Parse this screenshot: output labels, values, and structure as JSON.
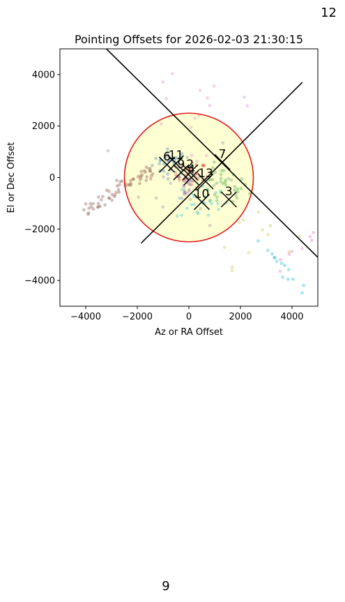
{
  "page": {
    "corner_number": "12",
    "footer_number": "9"
  },
  "colors": {
    "circle": "#e31a1c",
    "circle_fill": "#ffffd4",
    "lines": "#000000",
    "palette": [
      "#1f77b4",
      "#ff7f0e",
      "#2ca02c",
      "#d62728",
      "#9467bd",
      "#8c564b",
      "#e377c2",
      "#7f7f7f",
      "#bcbd22",
      "#17becf"
    ]
  },
  "chart_data": {
    "type": "scatter",
    "title": "Pointing Offsets for 2026-02-03 21:30:15",
    "xlabel": "Az or RA Offset",
    "ylabel": "El or Dec Offset",
    "xlim": [
      -5000,
      5000
    ],
    "ylim": [
      -5000,
      5000
    ],
    "x_ticks": [
      -4000,
      -2000,
      0,
      2000,
      4000
    ],
    "y_ticks": [
      -4000,
      -2000,
      0,
      2000,
      4000
    ],
    "x_tick_labels": [
      "−4000",
      "−2000",
      "0",
      "2000",
      "4000"
    ],
    "y_tick_labels": [
      "−4000",
      "−2000",
      "0",
      "2000",
      "4000"
    ],
    "grid": false,
    "circle": {
      "center": [
        0,
        0
      ],
      "radius": 2500
    },
    "lines": [
      {
        "name": "diagonal-down",
        "x": [
          -3200,
          5000
        ],
        "y": [
          5000,
          -3100
        ]
      },
      {
        "name": "diagonal-up",
        "x": [
          -1850,
          4400
        ],
        "y": [
          -2550,
          3700
        ]
      }
    ],
    "marked_points": [
      {
        "label": "6",
        "x": -850,
        "y": 500
      },
      {
        "label": "11",
        "x": -500,
        "y": 550
      },
      {
        "label": "7",
        "x": 1300,
        "y": 600
      },
      {
        "label": "9",
        "x": -300,
        "y": 200
      },
      {
        "label": "2",
        "x": 50,
        "y": 200
      },
      {
        "label": "4",
        "x": 100,
        "y": 0
      },
      {
        "label": "13",
        "x": 650,
        "y": -150
      },
      {
        "label": "10",
        "x": 500,
        "y": -950
      },
      {
        "label": "3",
        "x": 1550,
        "y": -850
      }
    ],
    "scatter_clusters": [
      {
        "color_index": 0,
        "cx": -700,
        "cy": 600,
        "sx": 350,
        "sy": 250,
        "n": 30
      },
      {
        "color_index": 3,
        "cx": 100,
        "cy": 100,
        "sx": 300,
        "sy": 250,
        "n": 30
      },
      {
        "color_index": 2,
        "cx": 1300,
        "cy": -400,
        "sx": 500,
        "sy": 400,
        "n": 35
      },
      {
        "color_index": 9,
        "cx": 500,
        "cy": -900,
        "sx": 500,
        "sy": 400,
        "n": 25
      },
      {
        "color_index": 4,
        "cx": -300,
        "cy": -300,
        "sx": 300,
        "sy": 300,
        "n": 20
      },
      {
        "color_index": 6,
        "cx": 500,
        "cy": 2500,
        "sx": 1500,
        "sy": 1500,
        "n": 18
      },
      {
        "color_index": 7,
        "cx": 0,
        "cy": 0,
        "sx": 900,
        "sy": 900,
        "n": 20
      },
      {
        "color_index": 8,
        "cx": 2500,
        "cy": -2000,
        "sx": 800,
        "sy": 700,
        "n": 12
      }
    ],
    "scatter_trails": [
      {
        "color_index": 5,
        "from": [
          -4000,
          -1350
        ],
        "to": [
          -1400,
          300
        ],
        "n": 60
      },
      {
        "color_index": 9,
        "from": [
          2700,
          -2400
        ],
        "to": [
          4800,
          -4700
        ],
        "n": 14
      },
      {
        "color_index": 6,
        "from": [
          3200,
          -3500
        ],
        "to": [
          4900,
          -2200
        ],
        "n": 8
      }
    ]
  }
}
